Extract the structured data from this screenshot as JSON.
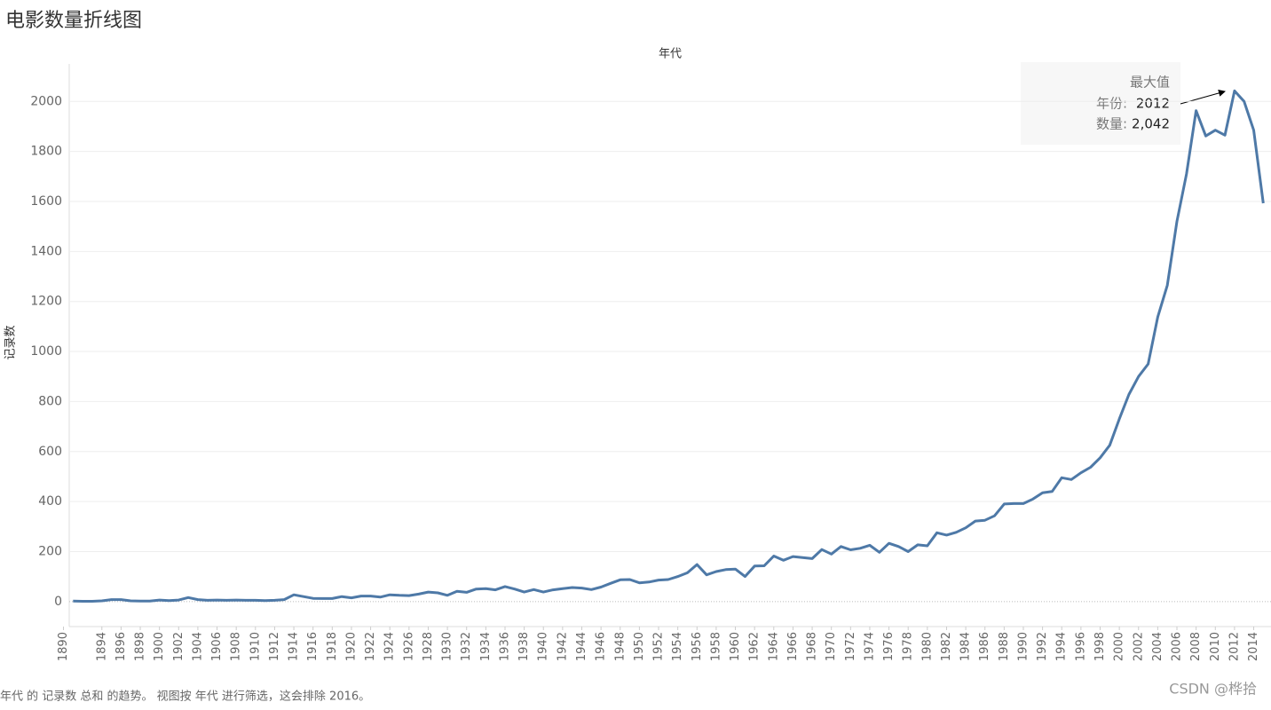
{
  "chart_data": {
    "type": "line",
    "title": "电影数量折线图",
    "x_label": "年代",
    "y_label": "记录数",
    "footnote": "年代 的 记录数 总和 的趋势。 视图按 年代 进行筛选，这会排除 2016。",
    "watermark": "CSDN @桦拾",
    "annotation": {
      "title": "最大值",
      "lines": [
        {
          "label": "年份:",
          "value": "2012"
        },
        {
          "label": "数量:",
          "value": "2,042"
        }
      ]
    },
    "x": [
      1891,
      1892,
      1893,
      1894,
      1895,
      1896,
      1897,
      1898,
      1899,
      1900,
      1901,
      1902,
      1903,
      1904,
      1905,
      1906,
      1907,
      1908,
      1909,
      1910,
      1911,
      1912,
      1913,
      1914,
      1915,
      1916,
      1917,
      1918,
      1919,
      1920,
      1921,
      1922,
      1923,
      1924,
      1925,
      1926,
      1927,
      1928,
      1929,
      1930,
      1931,
      1932,
      1933,
      1934,
      1935,
      1936,
      1937,
      1938,
      1939,
      1940,
      1941,
      1942,
      1943,
      1944,
      1945,
      1946,
      1947,
      1948,
      1949,
      1950,
      1951,
      1952,
      1953,
      1954,
      1955,
      1956,
      1957,
      1958,
      1959,
      1960,
      1961,
      1962,
      1963,
      1964,
      1965,
      1966,
      1967,
      1968,
      1969,
      1970,
      1971,
      1972,
      1973,
      1974,
      1975,
      1976,
      1977,
      1978,
      1979,
      1980,
      1981,
      1982,
      1983,
      1984,
      1985,
      1986,
      1987,
      1988,
      1989,
      1990,
      1991,
      1992,
      1993,
      1994,
      1995,
      1996,
      1997,
      1998,
      1999,
      2000,
      2001,
      2002,
      2003,
      2004,
      2005,
      2006,
      2007,
      2008,
      2009,
      2010,
      2011,
      2012,
      2013,
      2014,
      2015
    ],
    "series": [
      {
        "name": "记录数",
        "color": "#4e79a7",
        "values": [
          2,
          1,
          1,
          3,
          8,
          8,
          3,
          2,
          2,
          6,
          4,
          6,
          16,
          8,
          5,
          6,
          5,
          6,
          5,
          5,
          4,
          5,
          8,
          27,
          20,
          13,
          12,
          12,
          20,
          15,
          22,
          22,
          18,
          27,
          25,
          24,
          30,
          38,
          35,
          25,
          41,
          37,
          50,
          52,
          47,
          60,
          50,
          38,
          48,
          38,
          47,
          52,
          56,
          54,
          48,
          58,
          73,
          87,
          88,
          75,
          78,
          86,
          88,
          100,
          115,
          148,
          107,
          120,
          128,
          130,
          100,
          142,
          143,
          182,
          165,
          180,
          176,
          172,
          208,
          190,
          220,
          207,
          213,
          225,
          197,
          233,
          220,
          200,
          227,
          223,
          275,
          266,
          277,
          295,
          322,
          325,
          343,
          390,
          392,
          392,
          410,
          435,
          440,
          495,
          488,
          515,
          537,
          575,
          625,
          730,
          828,
          900,
          950,
          1138,
          1265,
          1520,
          1710,
          1963,
          1862,
          1885,
          1865,
          2042,
          2000,
          1885,
          1593
        ]
      }
    ],
    "xlim": [
      1890.6,
      2015.8
    ],
    "xticks": [
      1890,
      1894,
      1896,
      1898,
      1900,
      1902,
      1904,
      1906,
      1908,
      1910,
      1912,
      1914,
      1916,
      1918,
      1920,
      1922,
      1924,
      1926,
      1928,
      1930,
      1932,
      1934,
      1936,
      1938,
      1940,
      1942,
      1944,
      1946,
      1948,
      1950,
      1952,
      1954,
      1956,
      1958,
      1960,
      1962,
      1964,
      1966,
      1968,
      1970,
      1972,
      1974,
      1976,
      1978,
      1980,
      1982,
      1984,
      1986,
      1988,
      1990,
      1992,
      1994,
      1996,
      1998,
      2000,
      2002,
      2004,
      2006,
      2008,
      2010,
      2012,
      2014
    ],
    "ylim": [
      -100,
      2150
    ],
    "yticks": [
      0,
      200,
      400,
      600,
      800,
      1000,
      1200,
      1400,
      1600,
      1800,
      2000
    ],
    "grid": true
  }
}
